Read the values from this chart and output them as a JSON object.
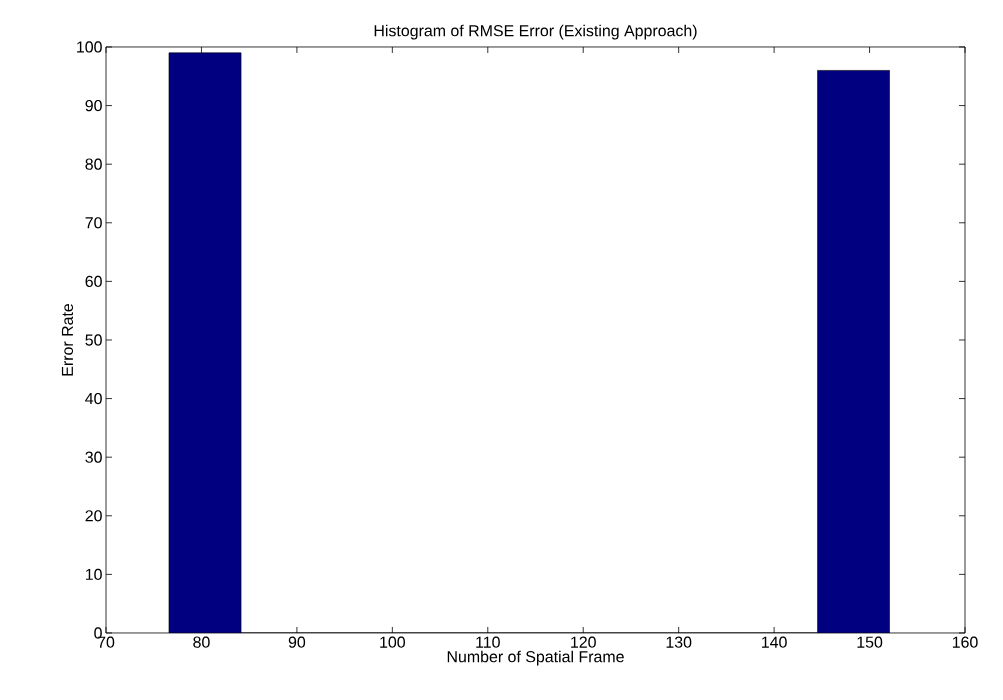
{
  "chart_data": {
    "type": "histogram",
    "title": "Histogram of RMSE Error (Existing Approach)",
    "xlabel": "Number of Spatial Frame",
    "ylabel": "Error Rate",
    "bins": [
      76.6,
      84.15,
      91.7,
      99.25,
      106.8,
      114.35,
      121.9,
      129.45,
      137.0,
      144.55,
      152.1
    ],
    "values": [
      99,
      0,
      0,
      0,
      0,
      0,
      0,
      0,
      0,
      96
    ],
    "color": "#000080",
    "xlim": [
      70,
      160
    ],
    "xticks": [
      70,
      80,
      90,
      100,
      110,
      120,
      130,
      140,
      150,
      160
    ],
    "ylim": [
      0,
      100
    ],
    "yticks": [
      0,
      10,
      20,
      30,
      40,
      50,
      60,
      70,
      80,
      90,
      100
    ],
    "grid": false
  }
}
